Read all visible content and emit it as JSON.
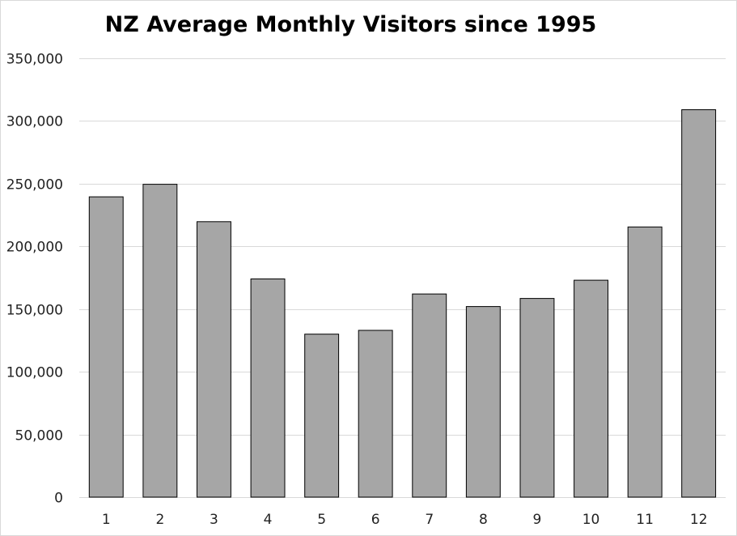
{
  "chart_data": {
    "type": "bar",
    "title": "NZ Average Monthly Visitors since 1995",
    "xlabel": "",
    "ylabel": "",
    "categories": [
      "1",
      "2",
      "3",
      "4",
      "5",
      "6",
      "7",
      "8",
      "9",
      "10",
      "11",
      "12"
    ],
    "values": [
      239500,
      249500,
      219700,
      174000,
      130000,
      133000,
      162000,
      152000,
      158500,
      173000,
      215500,
      309000
    ],
    "ylim": [
      0,
      350000
    ],
    "yticks": [
      0,
      50000,
      100000,
      150000,
      200000,
      250000,
      300000,
      350000
    ],
    "ytick_labels": [
      "0",
      "50,000",
      "100,000",
      "150,000",
      "200,000",
      "250,000",
      "300,000",
      "350,000"
    ],
    "grid": true,
    "legend": "none",
    "bar_color": "#a6a6a6",
    "bar_edge_color": "#000000",
    "grid_color": "#d9d9d9"
  }
}
